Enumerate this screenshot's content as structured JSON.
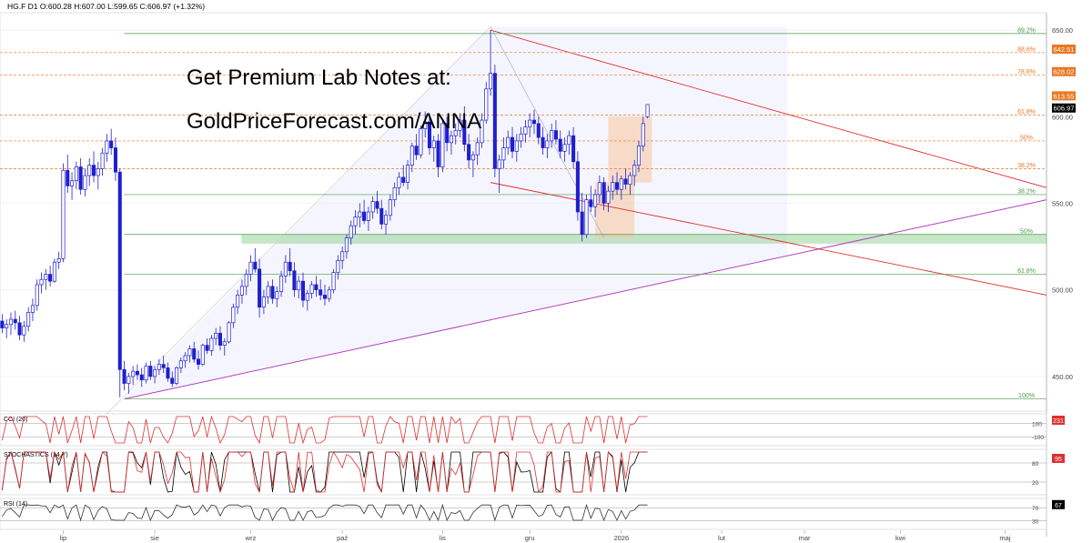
{
  "chart_data": {
    "type": "candlestick",
    "header": "HG.F  D1  O:600.28  H:607.00  L:599.65  C:606.97  (+1.32%)",
    "overlay_text": [
      "Get Premium Lab Notes at:",
      "GoldPriceForecast.com/ANNA"
    ],
    "ylim": [
      430,
      660
    ],
    "y_ticks": [
      450,
      500,
      550,
      600,
      650
    ],
    "x_labels": [
      {
        "label": "lip",
        "bar": 14
      },
      {
        "label": "sie",
        "bar": 35
      },
      {
        "label": "wrz",
        "bar": 57
      },
      {
        "label": "paź",
        "bar": 78
      },
      {
        "label": "lis",
        "bar": 101
      },
      {
        "label": "gru",
        "bar": 121
      },
      {
        "label": "2026",
        "bar": 142
      },
      {
        "label": "lut",
        "bar": 165
      },
      {
        "label": "mar",
        "bar": 184
      },
      {
        "label": "kwi",
        "bar": 206
      },
      {
        "label": "maj",
        "bar": 230
      }
    ],
    "bars_total": 240,
    "candles": [
      [
        482,
        486,
        475,
        478
      ],
      [
        478,
        483,
        472,
        480
      ],
      [
        480,
        487,
        474,
        483
      ],
      [
        483,
        488,
        477,
        481
      ],
      [
        481,
        485,
        471,
        474
      ],
      [
        474,
        482,
        470,
        479
      ],
      [
        479,
        490,
        476,
        487
      ],
      [
        487,
        495,
        482,
        491
      ],
      [
        491,
        506,
        488,
        503
      ],
      [
        503,
        510,
        498,
        506
      ],
      [
        506,
        512,
        500,
        509
      ],
      [
        509,
        514,
        502,
        505
      ],
      [
        505,
        518,
        504,
        516
      ],
      [
        516,
        522,
        512,
        518
      ],
      [
        518,
        573,
        516,
        569
      ],
      [
        569,
        578,
        556,
        560
      ],
      [
        560,
        568,
        552,
        563
      ],
      [
        563,
        574,
        558,
        571
      ],
      [
        571,
        576,
        555,
        558
      ],
      [
        558,
        570,
        554,
        566
      ],
      [
        566,
        576,
        560,
        572
      ],
      [
        572,
        580,
        562,
        566
      ],
      [
        566,
        574,
        558,
        570
      ],
      [
        570,
        582,
        566,
        579
      ],
      [
        579,
        590,
        574,
        586
      ],
      [
        586,
        593,
        578,
        582
      ],
      [
        582,
        588,
        563,
        568
      ],
      [
        568,
        570,
        438,
        454
      ],
      [
        454,
        459,
        442,
        446
      ],
      [
        446,
        452,
        440,
        450
      ],
      [
        450,
        456,
        445,
        453
      ],
      [
        453,
        457,
        448,
        451
      ],
      [
        451,
        455,
        444,
        448
      ],
      [
        448,
        458,
        446,
        456
      ],
      [
        456,
        459,
        448,
        450
      ],
      [
        450,
        456,
        446,
        454
      ],
      [
        454,
        460,
        451,
        457
      ],
      [
        457,
        462,
        452,
        455
      ],
      [
        455,
        458,
        447,
        449
      ],
      [
        449,
        453,
        444,
        446
      ],
      [
        446,
        456,
        445,
        455
      ],
      [
        455,
        461,
        452,
        459
      ],
      [
        459,
        464,
        455,
        462
      ],
      [
        462,
        468,
        458,
        466
      ],
      [
        466,
        470,
        458,
        460
      ],
      [
        460,
        465,
        454,
        457
      ],
      [
        457,
        469,
        456,
        468
      ],
      [
        468,
        472,
        463,
        465
      ],
      [
        465,
        474,
        462,
        472
      ],
      [
        472,
        478,
        468,
        475
      ],
      [
        475,
        479,
        465,
        468
      ],
      [
        468,
        472,
        462,
        470
      ],
      [
        470,
        482,
        469,
        481
      ],
      [
        481,
        492,
        478,
        490
      ],
      [
        490,
        500,
        486,
        497
      ],
      [
        497,
        506,
        492,
        502
      ],
      [
        502,
        512,
        497,
        509
      ],
      [
        509,
        520,
        505,
        516
      ],
      [
        516,
        524,
        510,
        512
      ],
      [
        512,
        518,
        484,
        490
      ],
      [
        490,
        500,
        486,
        496
      ],
      [
        496,
        505,
        492,
        502
      ],
      [
        502,
        506,
        492,
        495
      ],
      [
        495,
        502,
        490,
        499
      ],
      [
        499,
        511,
        496,
        508
      ],
      [
        508,
        520,
        504,
        516
      ],
      [
        516,
        524,
        508,
        511
      ],
      [
        511,
        516,
        496,
        500
      ],
      [
        500,
        508,
        495,
        505
      ],
      [
        505,
        510,
        490,
        494
      ],
      [
        494,
        500,
        488,
        498
      ],
      [
        498,
        505,
        495,
        503
      ],
      [
        503,
        508,
        496,
        500
      ],
      [
        500,
        506,
        494,
        497
      ],
      [
        497,
        503,
        491,
        495
      ],
      [
        495,
        502,
        493,
        500
      ],
      [
        500,
        512,
        498,
        510
      ],
      [
        510,
        520,
        506,
        517
      ],
      [
        517,
        525,
        512,
        522
      ],
      [
        522,
        532,
        518,
        530
      ],
      [
        530,
        540,
        526,
        537
      ],
      [
        537,
        546,
        532,
        542
      ],
      [
        542,
        550,
        536,
        545
      ],
      [
        545,
        552,
        538,
        540
      ],
      [
        540,
        548,
        534,
        545
      ],
      [
        545,
        554,
        541,
        551
      ],
      [
        551,
        557,
        544,
        547
      ],
      [
        547,
        552,
        535,
        538
      ],
      [
        538,
        546,
        532,
        543
      ],
      [
        543,
        555,
        540,
        552
      ],
      [
        552,
        562,
        548,
        559
      ],
      [
        559,
        568,
        555,
        565
      ],
      [
        565,
        572,
        560,
        562
      ],
      [
        562,
        575,
        558,
        572
      ],
      [
        572,
        585,
        568,
        583
      ],
      [
        583,
        590,
        575,
        578
      ],
      [
        578,
        595,
        576,
        593
      ],
      [
        593,
        603,
        588,
        597
      ],
      [
        597,
        602,
        578,
        582
      ],
      [
        582,
        589,
        574,
        586
      ],
      [
        586,
        590,
        565,
        571
      ],
      [
        571,
        598,
        568,
        596
      ],
      [
        596,
        600,
        580,
        585
      ],
      [
        585,
        592,
        578,
        589
      ],
      [
        589,
        596,
        584,
        592
      ],
      [
        592,
        602,
        588,
        598
      ],
      [
        598,
        606,
        580,
        584
      ],
      [
        584,
        590,
        570,
        575
      ],
      [
        575,
        580,
        565,
        578
      ],
      [
        578,
        588,
        572,
        585
      ],
      [
        585,
        602,
        582,
        598
      ],
      [
        598,
        620,
        596,
        616
      ],
      [
        616,
        650,
        612,
        625
      ],
      [
        625,
        630,
        565,
        570
      ],
      [
        570,
        578,
        556,
        575
      ],
      [
        575,
        588,
        570,
        582
      ],
      [
        582,
        592,
        578,
        588
      ],
      [
        588,
        594,
        576,
        580
      ],
      [
        580,
        590,
        574,
        586
      ],
      [
        586,
        594,
        582,
        590
      ],
      [
        590,
        598,
        585,
        594
      ],
      [
        594,
        602,
        588,
        598
      ],
      [
        598,
        604,
        590,
        596
      ],
      [
        596,
        600,
        584,
        588
      ],
      [
        588,
        594,
        578,
        582
      ],
      [
        582,
        590,
        576,
        586
      ],
      [
        586,
        596,
        582,
        592
      ],
      [
        592,
        598,
        584,
        587
      ],
      [
        587,
        592,
        576,
        580
      ],
      [
        580,
        588,
        574,
        584
      ],
      [
        584,
        592,
        578,
        589
      ],
      [
        589,
        594,
        570,
        574
      ],
      [
        574,
        580,
        540,
        545
      ],
      [
        545,
        556,
        528,
        532
      ],
      [
        532,
        555,
        530,
        552
      ],
      [
        552,
        560,
        545,
        548
      ],
      [
        548,
        558,
        542,
        555
      ],
      [
        555,
        566,
        550,
        562
      ],
      [
        562,
        565,
        546,
        550
      ],
      [
        550,
        560,
        545,
        557
      ],
      [
        557,
        566,
        552,
        562
      ],
      [
        562,
        568,
        555,
        558
      ],
      [
        558,
        566,
        552,
        564
      ],
      [
        564,
        570,
        558,
        561
      ],
      [
        561,
        568,
        555,
        566
      ],
      [
        566,
        575,
        560,
        572
      ],
      [
        572,
        586,
        568,
        583
      ],
      [
        583,
        600,
        580,
        596
      ],
      [
        600,
        607,
        599,
        607
      ]
    ],
    "fib_lines": [
      {
        "label": "100%",
        "value": 437,
        "color": "#4a9a4a"
      },
      {
        "label": "61.8%",
        "value": 509,
        "color": "#4a9a4a"
      },
      {
        "label": "50%",
        "value": 532,
        "color": "#4a9a4a"
      },
      {
        "label": "38.2%",
        "value": 555,
        "color": "#4a9a4a"
      },
      {
        "label": "38.2%",
        "value": 570,
        "color": "#e87722"
      },
      {
        "label": "50%",
        "value": 586,
        "color": "#e87722"
      },
      {
        "label": "61.8%",
        "value": 601,
        "color": "#e87722"
      },
      {
        "label": "78.6%",
        "value": 624,
        "color": "#e87722"
      },
      {
        "label": "88.6%",
        "value": 637,
        "color": "#e87722"
      },
      {
        "label": "89.2%",
        "value": 648,
        "color": "#4a9a4a"
      }
    ],
    "price_levels": [
      {
        "label": "642.51",
        "value": 639,
        "color": "#e87722"
      },
      {
        "label": "628.02",
        "value": 626,
        "color": "#e87722"
      },
      {
        "label": "613.55",
        "value": 612,
        "color": "#e87722"
      },
      {
        "label": "606.97",
        "value": 605,
        "color": "#000000"
      }
    ],
    "green_zone": [
      527,
      532
    ],
    "indicators": [
      {
        "name": "CCI (20)",
        "levels": [
          "100",
          "-100"
        ],
        "last": "231",
        "last_color": "#e03030"
      },
      {
        "name": "STOCHASTICS (14,Y)",
        "levels": [
          "80",
          "20"
        ],
        "last": "95",
        "last_color": "#e03030"
      },
      {
        "name": "RSI (14)",
        "levels": [
          "70",
          "30"
        ],
        "last": "67",
        "last_color": "#000000"
      }
    ],
    "colors": {
      "bull": "#1f1fcc",
      "bear": "#1f1fcc",
      "trend_red": "#e03030",
      "trend_purple": "#b040c0",
      "fib_orange": "#e87722",
      "fib_green": "#4a9a4a"
    }
  }
}
